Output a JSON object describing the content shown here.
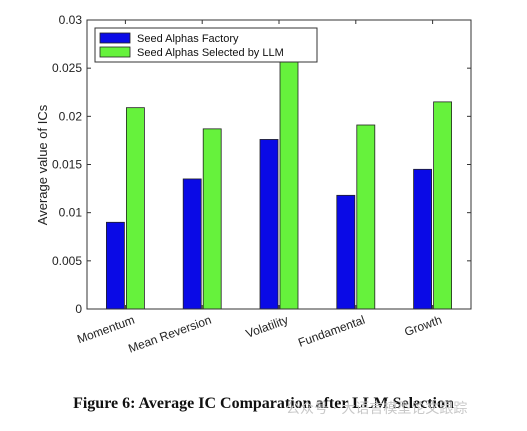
{
  "chart_data": {
    "type": "bar",
    "categories": [
      "Momentum",
      "Mean Reversion",
      "Volatility",
      "Fundamental",
      "Growth"
    ],
    "series": [
      {
        "name": "Seed Alphas Factory",
        "color": "#0a0ae6",
        "values": [
          0.009,
          0.0135,
          0.0176,
          0.0118,
          0.0145
        ]
      },
      {
        "name": "Seed Alphas Selected by LLM",
        "color": "#66f23c",
        "values": [
          0.0209,
          0.0187,
          0.0257,
          0.0191,
          0.0215
        ]
      }
    ],
    "ylabel": "Average value of ICs",
    "ylim": [
      0,
      0.03
    ],
    "yticks": [
      "0",
      "0.005",
      "0.01",
      "0.015",
      "0.02",
      "0.025",
      "0.03"
    ],
    "legend_position": "top-left",
    "grid": false
  },
  "caption": "Figure 6: Average IC Comparation after LLM Selection",
  "watermark": "公众号 · 大语言模型论文跟踪"
}
